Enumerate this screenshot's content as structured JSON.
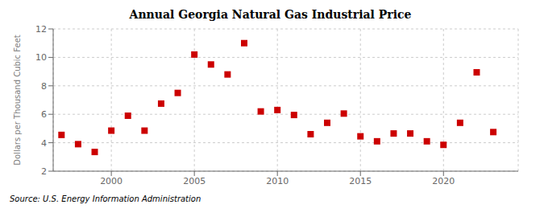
{
  "chart_data": {
    "type": "scatter",
    "title": "Annual Georgia Natural Gas Industrial Price",
    "ylabel": "Dollars per Thousand Cubic Feet",
    "annotation": "Source: U.S. Energy Information Administration",
    "x": [
      1997,
      1998,
      1999,
      2000,
      2001,
      2002,
      2003,
      2004,
      2005,
      2006,
      2007,
      2008,
      2009,
      2010,
      2011,
      2012,
      2013,
      2014,
      2015,
      2016,
      2017,
      2018,
      2019,
      2020,
      2021,
      2022,
      2023
    ],
    "values": [
      4.55,
      3.9,
      3.35,
      4.85,
      5.9,
      4.85,
      6.75,
      7.5,
      10.2,
      9.5,
      8.8,
      11.0,
      6.2,
      6.3,
      5.95,
      4.6,
      5.4,
      6.05,
      4.45,
      4.1,
      4.65,
      4.65,
      4.1,
      3.85,
      5.4,
      8.95,
      4.75
    ],
    "color": "#cc0000",
    "marker": "square",
    "xlim": [
      1996.5,
      2024.5
    ],
    "xticks": [
      2000,
      2005,
      2010,
      2015,
      2020
    ],
    "ylim": [
      2,
      12
    ],
    "yticks": [
      2,
      4,
      6,
      8,
      10,
      12
    ],
    "grid": true
  }
}
